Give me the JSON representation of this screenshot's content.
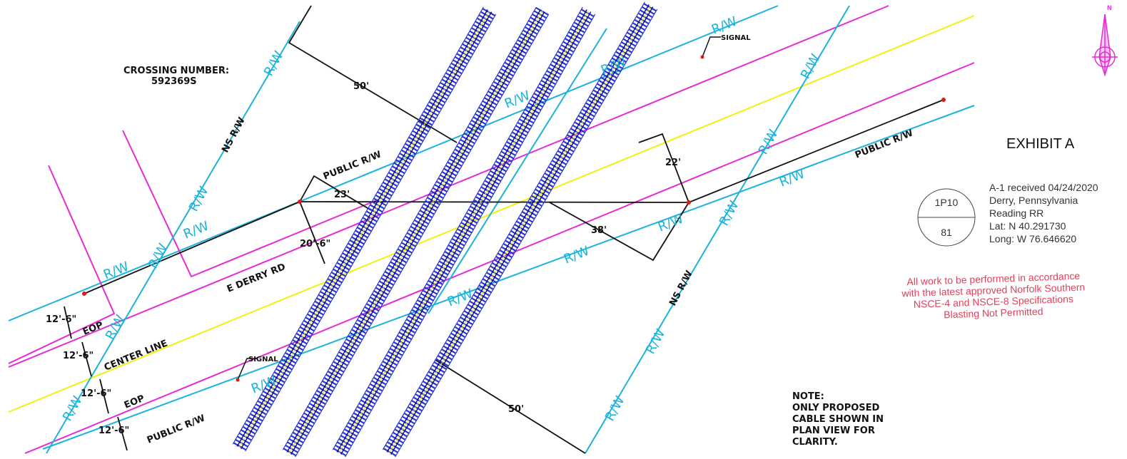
{
  "colors": {
    "row": "#1ab3dc",
    "magenta": "#e62bd6",
    "centerline": "#f2f211",
    "track": "#2a35d4",
    "rail": "#0b0b8a",
    "ink": "#111111",
    "red": "#e0405a",
    "point": "#e01818"
  },
  "crossing": {
    "heading": "CROSSING NUMBER:",
    "number": "592369S"
  },
  "row_label": "R/W",
  "labels": {
    "ns_row": "NS R/W",
    "public_row": "PUBLIC R/W",
    "signal": "SIGNAL",
    "road": "E DERRY RD",
    "center_line": "CENTER LINE",
    "eop": "EOP"
  },
  "dims": {
    "d50": "50'",
    "d23": "23'",
    "d22": "22'",
    "d38": "38'",
    "d20_6": "20'-6\"",
    "d12_6": "12'-6\""
  },
  "exhibit_title": "EXHIBIT A",
  "circle_top": "1P10",
  "circle_bottom": "81",
  "info_lines": [
    "A-1 received 04/24/2020",
    "Derry, Pennsylvania",
    "Reading RR",
    "Lat: N 40.291730",
    "Long: W 76.646620"
  ],
  "red_note_lines": [
    "All work to be performed in accordance",
    "with the latest approved Norfolk Southern",
    "NSCE-4 and NSCE-8 Specifications",
    "Blasting Not Permitted"
  ],
  "note_lines": [
    "NOTE:",
    "ONLY PROPOSED",
    "CABLE SHOWN IN",
    "PLAN VIEW FOR",
    "CLARITY."
  ],
  "north_label": "N",
  "icons": [
    "north-arrow-icon"
  ]
}
